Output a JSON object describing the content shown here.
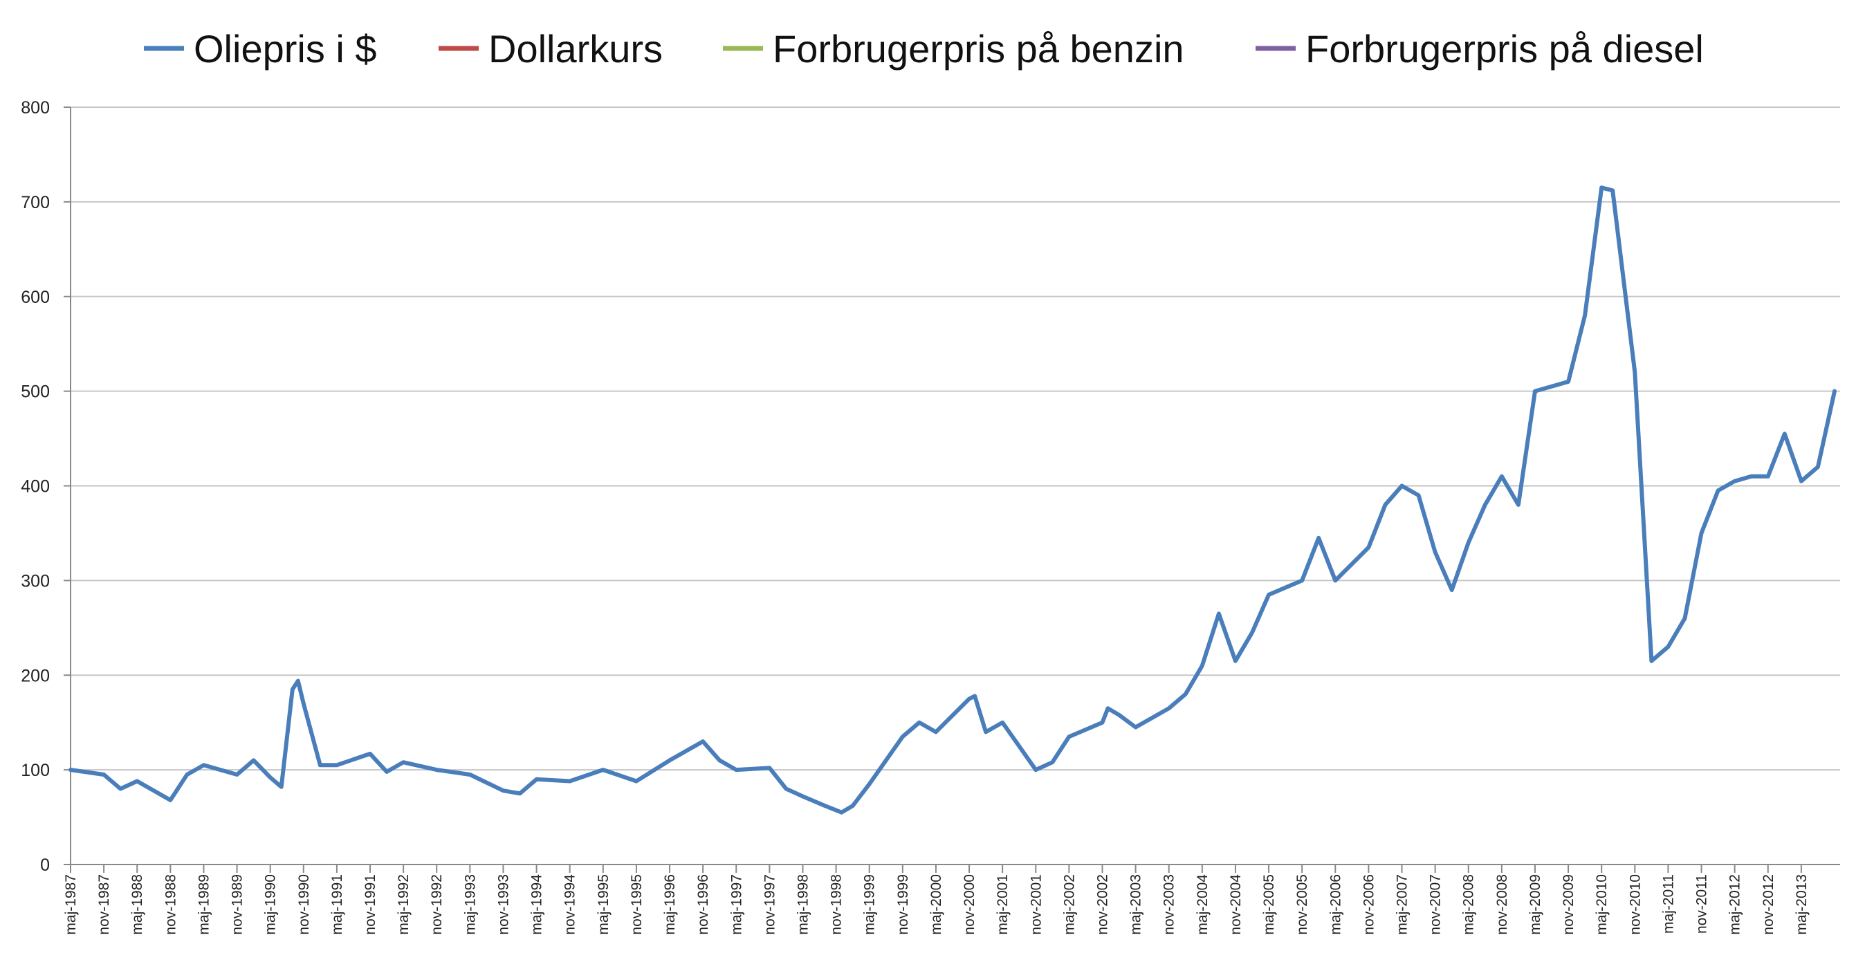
{
  "chart_data": {
    "type": "line",
    "legend_position": "top",
    "grid": true,
    "ylim": [
      0,
      800
    ],
    "yticks": [
      0,
      100,
      200,
      300,
      400,
      500,
      600,
      700,
      800
    ],
    "xticks": [
      "maj-1987",
      "nov-1987",
      "maj-1988",
      "nov-1988",
      "maj-1989",
      "nov-1989",
      "maj-1990",
      "nov-1990",
      "maj-1991",
      "nov-1991",
      "maj-1992",
      "nov-1992",
      "maj-1993",
      "nov-1993",
      "maj-1994",
      "nov-1994",
      "maj-1995",
      "nov-1995",
      "maj-1996",
      "nov-1996",
      "maj-1997",
      "nov-1997",
      "maj-1998",
      "nov-1998",
      "maj-1999",
      "nov-1999",
      "maj-2000",
      "nov-2000",
      "maj-2001",
      "nov-2001",
      "maj-2002",
      "nov-2002",
      "maj-2003",
      "nov-2003",
      "maj-2004",
      "nov-2004",
      "maj-2005",
      "nov-2005",
      "maj-2006",
      "nov-2006",
      "maj-2007",
      "nov-2007",
      "maj-2008",
      "nov-2008",
      "maj-2009",
      "nov-2009",
      "maj-2010",
      "nov-2010",
      "maj-2011",
      "nov-2011",
      "maj-2012",
      "nov-2012",
      "maj-2013"
    ],
    "x_start": "maj-1987",
    "x_end": "dec-2013",
    "series": [
      {
        "name": "Oliepris i $",
        "color": "#4a7ebb",
        "points": [
          [
            "maj-1987",
            100
          ],
          [
            "nov-1987",
            95
          ],
          [
            "feb-1988",
            80
          ],
          [
            "maj-1988",
            88
          ],
          [
            "nov-1988",
            68
          ],
          [
            "feb-1989",
            95
          ],
          [
            "maj-1989",
            105
          ],
          [
            "nov-1989",
            95
          ],
          [
            "feb-1990",
            110
          ],
          [
            "maj-1990",
            92
          ],
          [
            "jul-1990",
            82
          ],
          [
            "sep-1990",
            185
          ],
          [
            "okt-1990",
            194
          ],
          [
            "nov-1990",
            170
          ],
          [
            "feb-1991",
            105
          ],
          [
            "maj-1991",
            105
          ],
          [
            "nov-1991",
            117
          ],
          [
            "feb-1992",
            98
          ],
          [
            "maj-1992",
            108
          ],
          [
            "nov-1992",
            100
          ],
          [
            "maj-1993",
            95
          ],
          [
            "nov-1993",
            78
          ],
          [
            "feb-1994",
            75
          ],
          [
            "maj-1994",
            90
          ],
          [
            "nov-1994",
            88
          ],
          [
            "maj-1995",
            100
          ],
          [
            "nov-1995",
            88
          ],
          [
            "maj-1996",
            110
          ],
          [
            "nov-1996",
            130
          ],
          [
            "feb-1997",
            110
          ],
          [
            "maj-1997",
            100
          ],
          [
            "nov-1997",
            102
          ],
          [
            "feb-1998",
            80
          ],
          [
            "maj-1998",
            72
          ],
          [
            "sep-1998",
            62
          ],
          [
            "dec-1998",
            55
          ],
          [
            "feb-1999",
            62
          ],
          [
            "maj-1999",
            85
          ],
          [
            "nov-1999",
            135
          ],
          [
            "feb-2000",
            150
          ],
          [
            "maj-2000",
            140
          ],
          [
            "nov-2000",
            175
          ],
          [
            "dec-2000",
            178
          ],
          [
            "feb-2001",
            140
          ],
          [
            "maj-2001",
            150
          ],
          [
            "nov-2001",
            100
          ],
          [
            "feb-2002",
            108
          ],
          [
            "maj-2002",
            135
          ],
          [
            "nov-2002",
            150
          ],
          [
            "dec-2002",
            165
          ],
          [
            "feb-2003",
            158
          ],
          [
            "maj-2003",
            145
          ],
          [
            "nov-2003",
            165
          ],
          [
            "feb-2004",
            180
          ],
          [
            "maj-2004",
            210
          ],
          [
            "aug-2004",
            265
          ],
          [
            "nov-2004",
            215
          ],
          [
            "feb-2005",
            245
          ],
          [
            "maj-2005",
            285
          ],
          [
            "nov-2005",
            300
          ],
          [
            "feb-2006",
            345
          ],
          [
            "maj-2006",
            300
          ],
          [
            "nov-2006",
            335
          ],
          [
            "feb-2007",
            380
          ],
          [
            "maj-2007",
            400
          ],
          [
            "aug-2007",
            390
          ],
          [
            "nov-2007",
            330
          ],
          [
            "feb-2008",
            290
          ],
          [
            "maj-2008",
            340
          ],
          [
            "aug-2008",
            380
          ],
          [
            "nov-2008",
            410
          ],
          [
            "feb-2009",
            380
          ],
          [
            "maj-2009",
            500
          ],
          [
            "nov-2009",
            510
          ],
          [
            "feb-2010",
            580
          ],
          [
            "maj-2010",
            715
          ],
          [
            "jul-2010",
            712
          ],
          [
            "nov-2010",
            520
          ],
          [
            "feb-2011",
            215
          ],
          [
            "maj-2011",
            230
          ],
          [
            "aug-2011",
            260
          ],
          [
            "nov-2011",
            350
          ],
          [
            "feb-2012",
            395
          ],
          [
            "maj-2012",
            405
          ],
          [
            "aug-2012",
            410
          ],
          [
            "nov-2012",
            410
          ],
          [
            "feb-2013",
            455
          ],
          [
            "maj-2013",
            405
          ],
          [
            "aug-2013",
            420
          ],
          [
            "nov-2013",
            500
          ]
        ]
      }
    ]
  },
  "legend": [
    {
      "label": "Oliepris i $",
      "color": "#4a7ebb"
    },
    {
      "label": "Dollarkurs",
      "color": "#be4b48"
    },
    {
      "label": "Forbrugerpris på benzin",
      "color": "#98b954"
    },
    {
      "label": "Forbrugerpris på diesel",
      "color": "#7d60a0"
    }
  ]
}
